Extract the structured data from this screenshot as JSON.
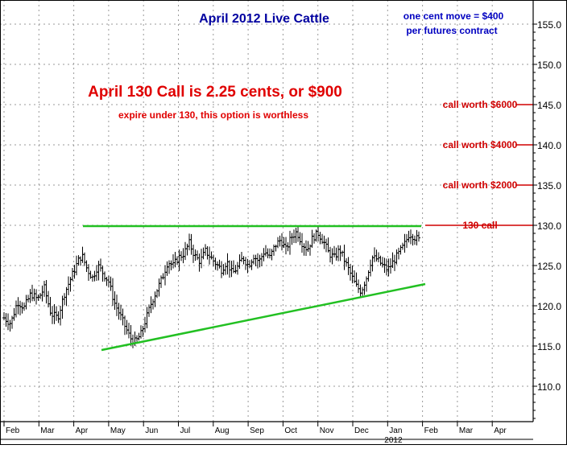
{
  "chart_data": {
    "type": "ohlc",
    "title": "April 2012 Live Cattle",
    "note_lines": [
      "one cent move = $400",
      "per futures contract"
    ],
    "headline": "April 130 Call is 2.25 cents, or $900",
    "subline": "expire under 130, this option is worthless",
    "ylim": [
      105,
      158
    ],
    "yticks": [
      {
        "value": 110,
        "label": "110.0"
      },
      {
        "value": 115,
        "label": "115.0"
      },
      {
        "value": 120,
        "label": "120.0"
      },
      {
        "value": 125,
        "label": "125.0"
      },
      {
        "value": 130,
        "label": "130.0"
      },
      {
        "value": 135,
        "label": "135.0"
      },
      {
        "value": 140,
        "label": "140.0"
      },
      {
        "value": 145,
        "label": "145.0"
      },
      {
        "value": 150,
        "label": "150.0"
      },
      {
        "value": 155,
        "label": "155.0"
      }
    ],
    "month_labels": [
      "Feb",
      "Mar",
      "Apr",
      "May",
      "Jun",
      "Jul",
      "Aug",
      "Sep",
      "Oct",
      "Nov",
      "Dec",
      "Jan",
      "Feb",
      "Mar",
      "Apr"
    ],
    "year_label": "2012",
    "grid": true,
    "series_path": [
      [
        0,
        118.5
      ],
      [
        5,
        117.8
      ],
      [
        10,
        120.5
      ],
      [
        15,
        119.8
      ],
      [
        20,
        121.5
      ],
      [
        25,
        120.8
      ],
      [
        30,
        122.2
      ],
      [
        35,
        119.0
      ],
      [
        40,
        118.5
      ],
      [
        45,
        121.5
      ],
      [
        50,
        123.5
      ],
      [
        55,
        125.5
      ],
      [
        58,
        126.3
      ],
      [
        62,
        124.5
      ],
      [
        66,
        123.5
      ],
      [
        70,
        125.0
      ],
      [
        74,
        124.0
      ],
      [
        78,
        123.0
      ],
      [
        82,
        120.5
      ],
      [
        86,
        119.0
      ],
      [
        90,
        117.5
      ],
      [
        94,
        116.0
      ],
      [
        98,
        115.5
      ],
      [
        102,
        116.5
      ],
      [
        106,
        118.5
      ],
      [
        110,
        120.5
      ],
      [
        114,
        122.0
      ],
      [
        118,
        123.5
      ],
      [
        122,
        125.5
      ],
      [
        126,
        125.0
      ],
      [
        130,
        126.0
      ],
      [
        134,
        126.5
      ],
      [
        138,
        127.8
      ],
      [
        142,
        126.2
      ],
      [
        146,
        125.5
      ],
      [
        150,
        126.8
      ],
      [
        154,
        126.0
      ],
      [
        158,
        125.2
      ],
      [
        162,
        124.5
      ],
      [
        166,
        125.5
      ],
      [
        170,
        124.0
      ],
      [
        174,
        124.8
      ],
      [
        178,
        126.0
      ],
      [
        182,
        125.0
      ],
      [
        186,
        126.2
      ],
      [
        190,
        125.5
      ],
      [
        194,
        126.8
      ],
      [
        198,
        126.0
      ],
      [
        202,
        127.5
      ],
      [
        206,
        128.2
      ],
      [
        210,
        127.0
      ],
      [
        214,
        128.5
      ],
      [
        218,
        129.2
      ],
      [
        222,
        127.8
      ],
      [
        226,
        127.0
      ],
      [
        230,
        128.5
      ],
      [
        234,
        129.0
      ],
      [
        238,
        128.0
      ],
      [
        242,
        126.5
      ],
      [
        246,
        126.0
      ],
      [
        250,
        127.0
      ],
      [
        254,
        125.5
      ],
      [
        258,
        124.0
      ],
      [
        262,
        122.5
      ],
      [
        266,
        121.8
      ],
      [
        270,
        123.5
      ],
      [
        274,
        126.0
      ],
      [
        278,
        125.8
      ],
      [
        282,
        125.0
      ],
      [
        286,
        124.5
      ],
      [
        290,
        125.5
      ],
      [
        294,
        126.5
      ],
      [
        298,
        127.5
      ],
      [
        302,
        129.0
      ],
      [
        306,
        128.5
      ],
      [
        309,
        128.2
      ]
    ],
    "resistance_line": {
      "y": 129.9,
      "label": "130 call"
    },
    "support_line": {
      "y_start": 114.5,
      "y_end": 122.7
    },
    "levels": [
      {
        "y": 145,
        "label": "call worth $6000"
      },
      {
        "y": 140,
        "label": "call worth $4000"
      },
      {
        "y": 135,
        "label": "call worth $2000"
      }
    ],
    "colors": {
      "title": "#0000a0",
      "note": "#0000c0",
      "headline": "#e00000",
      "level": "#d00000",
      "trend": "#22c022",
      "bars": "#000000",
      "grid": "#9a9a9a"
    }
  }
}
